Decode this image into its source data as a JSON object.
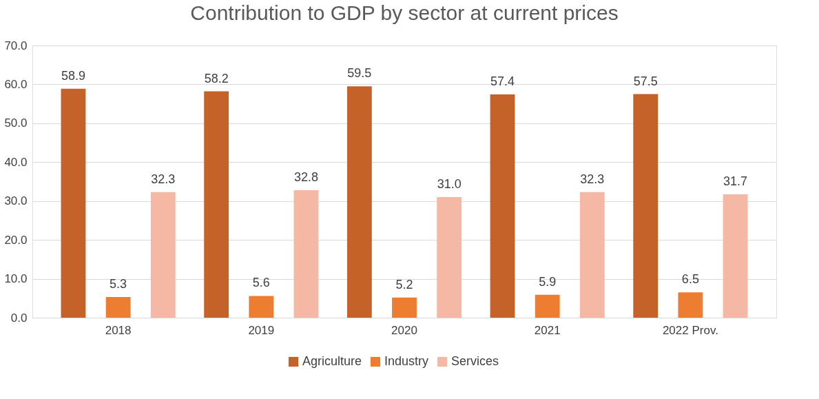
{
  "chart_data": {
    "type": "bar",
    "title": "Contribution to GDP by sector at current prices",
    "categories": [
      "2018",
      "2019",
      "2020",
      "2021",
      "2022 Prov."
    ],
    "series": [
      {
        "name": "Agriculture",
        "color": "#c4622a",
        "values": [
          58.9,
          58.2,
          59.5,
          57.4,
          57.5
        ],
        "value_labels": [
          "58.9",
          "58.2",
          "59.5",
          "57.4",
          "57.5"
        ]
      },
      {
        "name": "Industry",
        "color": "#ed7d31",
        "values": [
          5.3,
          5.6,
          5.2,
          5.9,
          6.5
        ],
        "value_labels": [
          "5.3",
          "5.6",
          "5.2",
          "5.9",
          "6.5"
        ]
      },
      {
        "name": "Services",
        "color": "#f4b8a4",
        "values": [
          32.3,
          32.8,
          31.0,
          32.3,
          31.7
        ],
        "value_labels": [
          "32.3",
          "32.8",
          "31.0",
          "32.3",
          "31.7"
        ]
      }
    ],
    "ylim": [
      0,
      70
    ],
    "yticks": [
      {
        "value": 0,
        "label": "0.0"
      },
      {
        "value": 10,
        "label": "10.0"
      },
      {
        "value": 20,
        "label": "20.0"
      },
      {
        "value": 30,
        "label": "30.0"
      },
      {
        "value": 40,
        "label": "40.0"
      },
      {
        "value": 50,
        "label": "50.0"
      },
      {
        "value": 60,
        "label": "60.0"
      },
      {
        "value": 70,
        "label": "70.0"
      }
    ],
    "grid": "y",
    "legend": "bottom"
  }
}
